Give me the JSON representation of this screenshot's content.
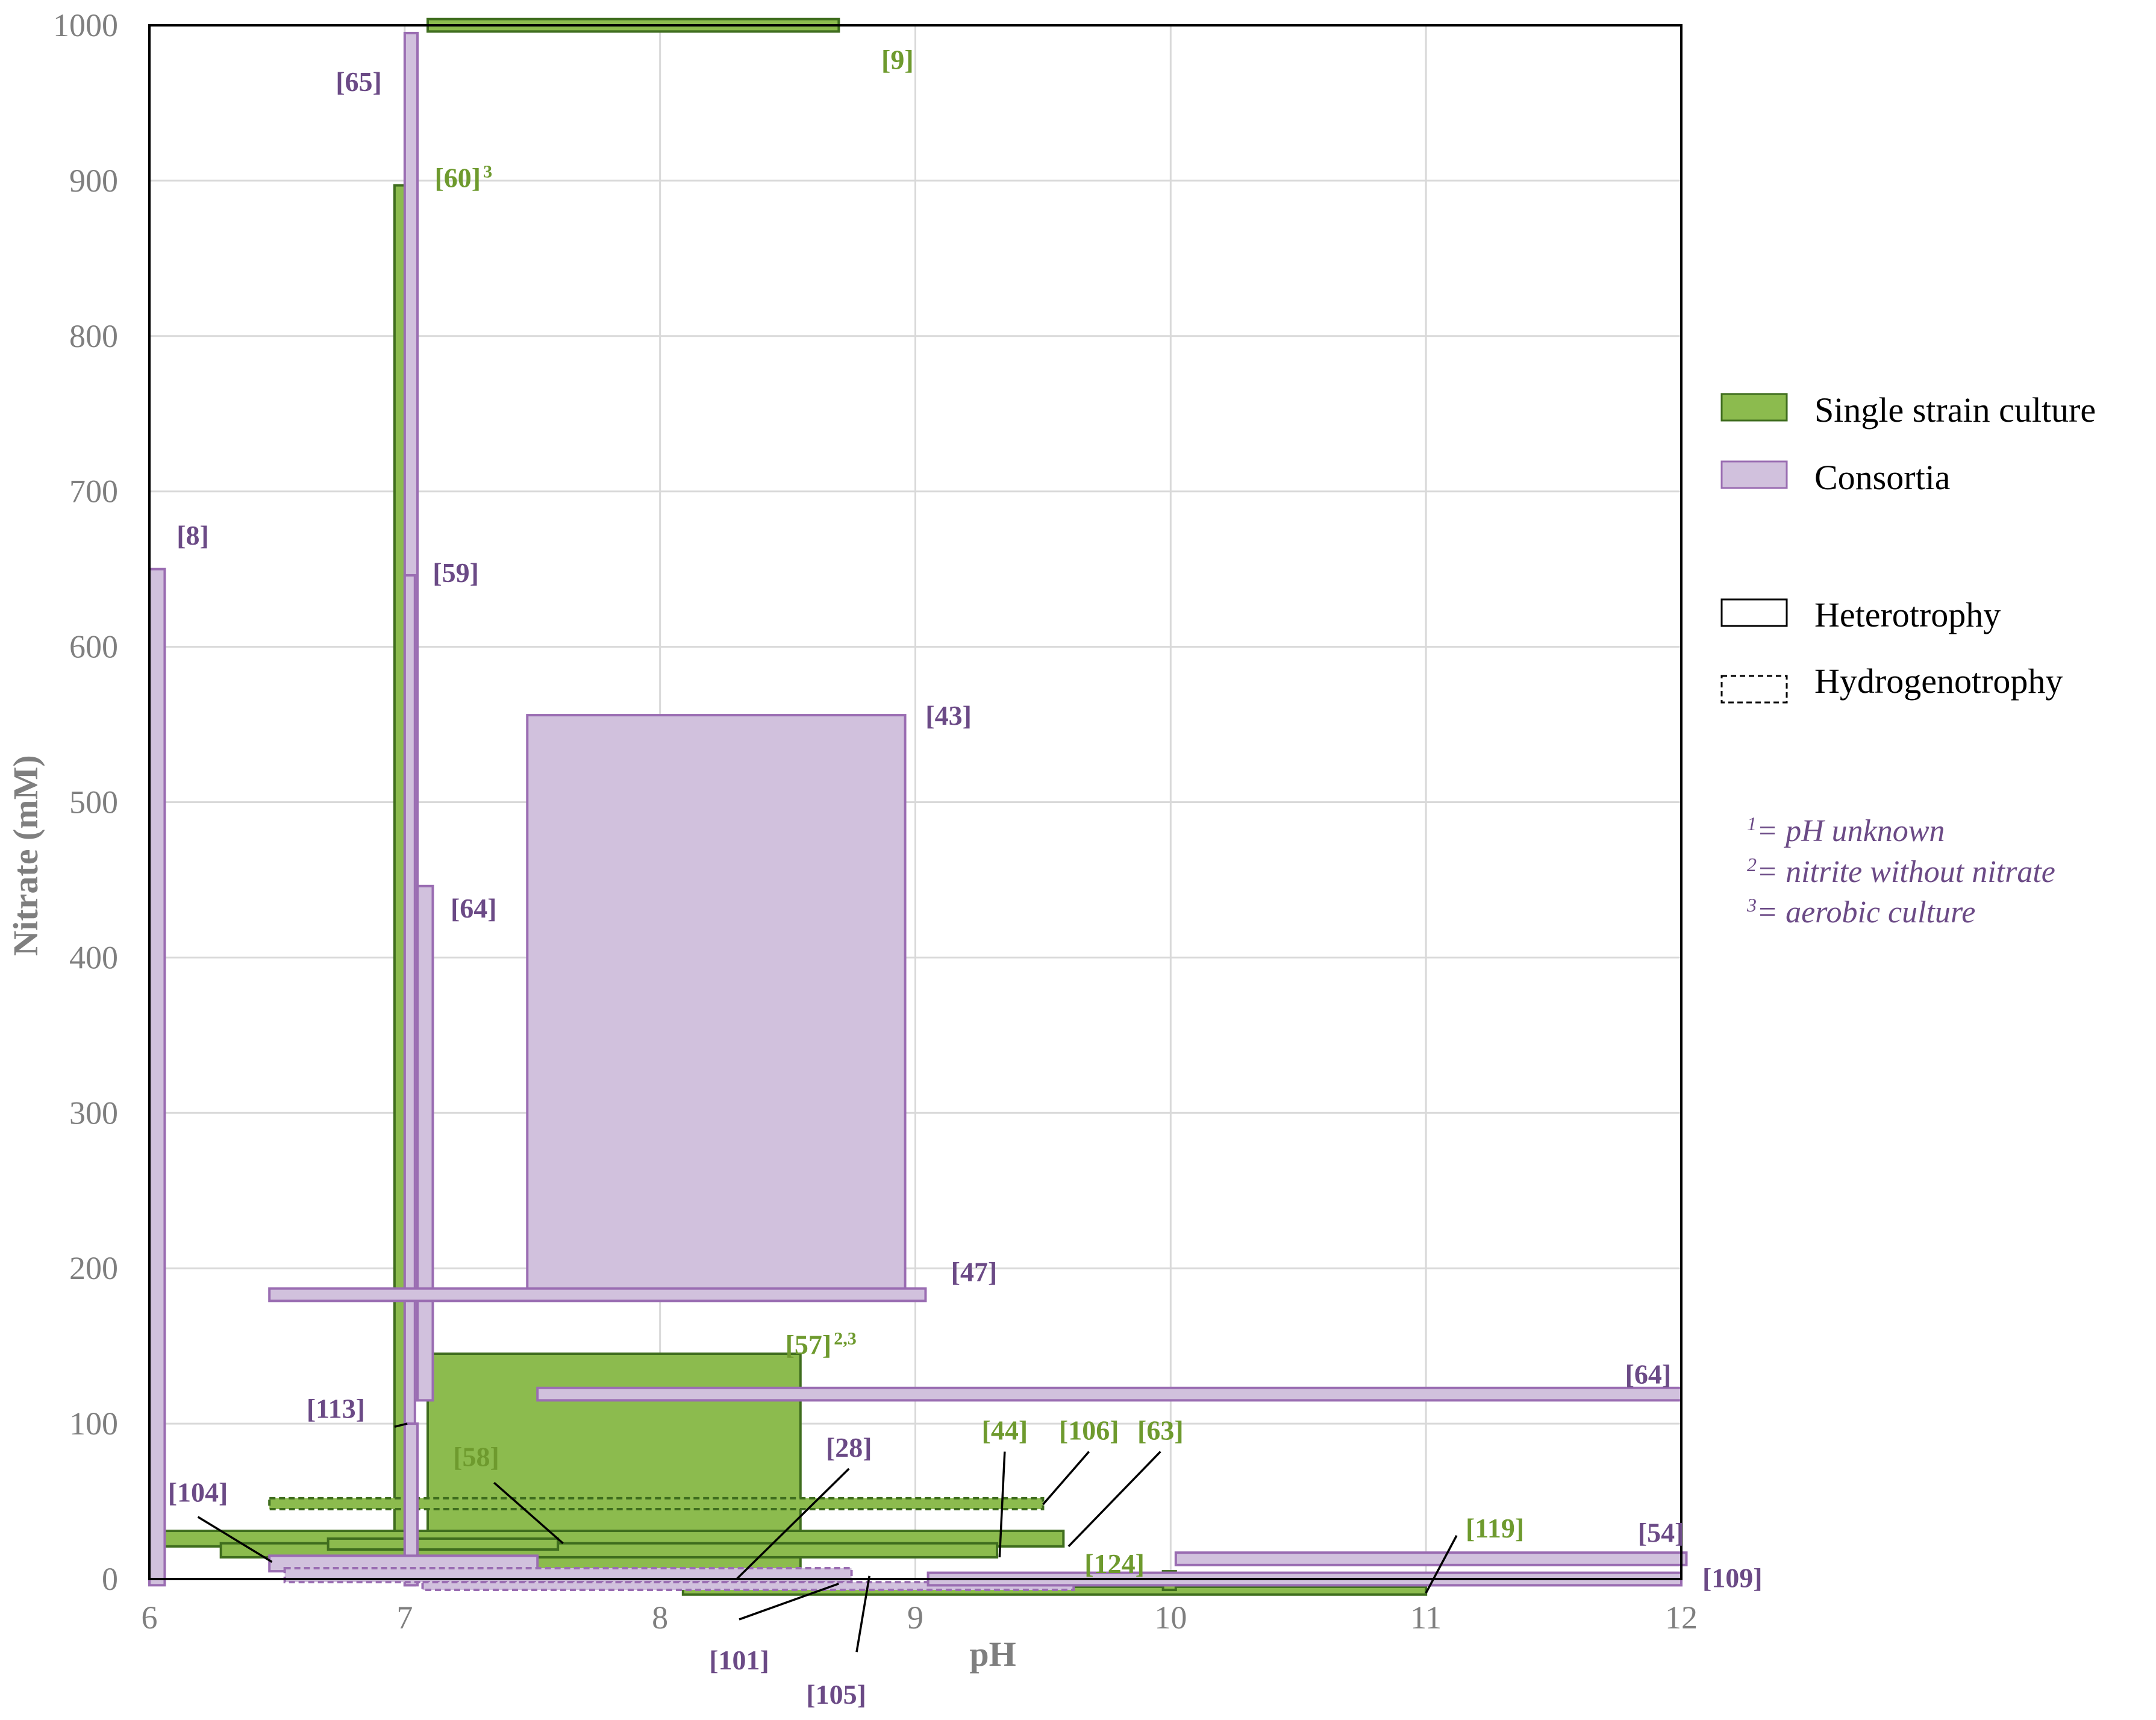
{
  "colors": {
    "single_fill": "#8cbb4e",
    "single_stroke": "#3f6d1e",
    "single_label": "#6e9a2e",
    "consortia_fill": "#d1c1dd",
    "consortia_stroke": "#9a6db2",
    "consortia_label": "#6b4a86",
    "consortia_label_light": "#9a6db2",
    "grid": "#d9d9d9",
    "frame": "#000000",
    "tick_text": "#7f7f7f",
    "note_text": "#6b4a86"
  },
  "chart_data": {
    "type": "range-rectangles",
    "xlabel": "pH",
    "ylabel": "Nitrate (mM)",
    "xlim": [
      6,
      12
    ],
    "ylim": [
      0,
      1000
    ],
    "x_ticks": [
      "6",
      "7",
      "8",
      "9",
      "10",
      "11",
      "12"
    ],
    "y_ticks": [
      "0",
      "100",
      "200",
      "300",
      "400",
      "500",
      "600",
      "700",
      "800",
      "900",
      "1000"
    ],
    "grid": true,
    "legend_position": "right",
    "legend": {
      "single": "Single strain culture",
      "consortia": "Consortia",
      "heterotrophy": "Heterotrophy",
      "hydrogenotrophy": "Hydrogenotrophy"
    },
    "notes": [
      {
        "sup": "1",
        "text": "= pH unknown"
      },
      {
        "sup": "2",
        "text": "= nitrite without nitrate"
      },
      {
        "sup": "3",
        "text": "= aerobic culture"
      }
    ],
    "ranges": [
      {
        "ref": "[9]",
        "group": "single",
        "mode": "heterotrophy",
        "ph": [
          7.09,
          8.7
        ],
        "nitrate": [
          996,
          1004
        ]
      },
      {
        "ref": "[60]",
        "group": "single",
        "mode": "heterotrophy",
        "ph": [
          6.96,
          7.01
        ],
        "nitrate": [
          0,
          897
        ]
      },
      {
        "ref": "[57]",
        "group": "single",
        "mode": "heterotrophy",
        "ph": [
          7.09,
          8.55
        ],
        "nitrate": [
          0,
          145
        ]
      },
      {
        "ref": "[63]",
        "group": "single",
        "mode": "heterotrophy",
        "ph": [
          6.04,
          9.58
        ],
        "nitrate": [
          21,
          31
        ]
      },
      {
        "ref": "[44]",
        "group": "single",
        "mode": "heterotrophy",
        "ph": [
          6.28,
          9.32
        ],
        "nitrate": [
          14,
          23
        ]
      },
      {
        "ref": "[58]",
        "group": "single",
        "mode": "heterotrophy",
        "ph": [
          6.7,
          7.6
        ],
        "nitrate": [
          19,
          26
        ]
      },
      {
        "ref": "[106]",
        "group": "single",
        "mode": "hydrogenotrophy",
        "ph": [
          6.47,
          9.5
        ],
        "nitrate": [
          45,
          52
        ]
      },
      {
        "ref": "[119]",
        "group": "single",
        "mode": "heterotrophy",
        "ph": [
          8.09,
          11.0
        ],
        "nitrate": [
          -10,
          -5
        ]
      },
      {
        "ref": "[124]",
        "group": "single",
        "mode": "heterotrophy",
        "ph": [
          9.97,
          10.02
        ],
        "nitrate": [
          -7,
          5
        ]
      },
      {
        "ref": "[65]",
        "group": "consortia",
        "mode": "heterotrophy",
        "ph": [
          7.0,
          7.05
        ],
        "nitrate": [
          115,
          995
        ]
      },
      {
        "ref": "[59]",
        "group": "consortia",
        "mode": "heterotrophy",
        "ph": [
          7.0,
          7.04
        ],
        "nitrate": [
          -4,
          646
        ]
      },
      {
        "ref": "[8]",
        "group": "consortia",
        "mode": "heterotrophy",
        "ph": [
          6.0,
          6.06
        ],
        "nitrate": [
          -4,
          650
        ]
      },
      {
        "ref": "[43]",
        "group": "consortia",
        "mode": "heterotrophy",
        "ph": [
          7.48,
          8.96
        ],
        "nitrate": [
          186,
          556
        ]
      },
      {
        "ref": "[64]",
        "group": "consortia",
        "mode": "heterotrophy",
        "ph": [
          7.05,
          7.11
        ],
        "nitrate": [
          115,
          446
        ]
      },
      {
        "ref": "[47]",
        "group": "consortia",
        "mode": "heterotrophy",
        "ph": [
          6.47,
          9.04
        ],
        "nitrate": [
          179,
          187
        ]
      },
      {
        "ref": "[64]",
        "group": "consortia",
        "mode": "heterotrophy",
        "ph": [
          7.52,
          12.0
        ],
        "nitrate": [
          115,
          123
        ]
      },
      {
        "ref": "[113]",
        "group": "consortia",
        "mode": "heterotrophy",
        "ph": [
          7.0,
          7.05
        ],
        "nitrate": [
          -4,
          100
        ]
      },
      {
        "ref": "[28]",
        "group": "consortia",
        "mode": "heterotrophy",
        "ph": [
          6.47,
          7.52
        ],
        "nitrate": [
          5,
          15
        ]
      },
      {
        "ref": "[104]",
        "group": "consortia",
        "mode": "hydrogenotrophy",
        "ph": [
          6.53,
          8.75
        ],
        "nitrate": [
          -2,
          7
        ]
      },
      {
        "ref": "[101]",
        "group": "consortia",
        "mode": "hydrogenotrophy",
        "ph": [
          7.07,
          9.62
        ],
        "nitrate": [
          -7,
          -2
        ]
      },
      {
        "ref": "[105]",
        "group": "consortia",
        "mode": "heterotrophy",
        "ph": [
          9.05,
          12.0
        ],
        "nitrate": [
          -4,
          4
        ]
      },
      {
        "ref": "[54]",
        "group": "consortia",
        "mode": "heterotrophy",
        "ph": [
          10.02,
          12.02
        ],
        "nitrate": [
          9,
          17
        ]
      },
      {
        "ref": "[109]",
        "group": "consortia",
        "mode": "heterotrophy",
        "ph": [
          9.05,
          12.0
        ],
        "nitrate": [
          -4,
          4
        ]
      }
    ],
    "labels": [
      {
        "text": "[9]",
        "group": "single",
        "ph": 8.93,
        "nitrate": 978
      },
      {
        "text": "[65]",
        "group": "consortia",
        "ph": 6.82,
        "nitrate": 964
      },
      {
        "text": "[60]",
        "sup": "3",
        "group": "single",
        "ph": 7.23,
        "nitrate": 902
      },
      {
        "text": "[8]",
        "group": "consortia",
        "ph": 6.17,
        "nitrate": 672
      },
      {
        "text": "[59]",
        "group": "consortia",
        "ph": 7.2,
        "nitrate": 648
      },
      {
        "text": "[43]",
        "group": "consortia",
        "ph": 9.13,
        "nitrate": 556
      },
      {
        "text": "[64]",
        "group": "consortia",
        "ph": 7.27,
        "nitrate": 432
      },
      {
        "text": "[47]",
        "group": "consortia",
        "ph": 9.23,
        "nitrate": 198
      },
      {
        "text": "[57]",
        "sup": "2,3",
        "group": "single",
        "ph": 8.63,
        "nitrate": 151
      },
      {
        "text": "[64]",
        "group": "consortia",
        "ph": 11.87,
        "nitrate": 132
      },
      {
        "text": "[113]",
        "group": "consortia",
        "ph": 6.73,
        "nitrate": 110
      },
      {
        "text": "[44]",
        "group": "single",
        "ph": 9.35,
        "nitrate": 96
      },
      {
        "text": "[106]",
        "group": "single",
        "ph": 9.68,
        "nitrate": 96
      },
      {
        "text": "[63]",
        "group": "single",
        "ph": 9.96,
        "nitrate": 96
      },
      {
        "text": "[28]",
        "group": "consortia",
        "ph": 8.74,
        "nitrate": 85
      },
      {
        "text": "[58]",
        "group": "single",
        "ph": 7.28,
        "nitrate": 79
      },
      {
        "text": "[104]",
        "group": "consortia",
        "ph": 6.19,
        "nitrate": 56
      },
      {
        "text": "[119]",
        "group": "single",
        "ph": 11.27,
        "nitrate": 33
      },
      {
        "text": "[54]",
        "group": "consortia",
        "ph": 11.92,
        "nitrate": 30
      },
      {
        "text": "[124]",
        "group": "single",
        "ph": 9.78,
        "nitrate": 10
      },
      {
        "text": "[109]",
        "group": "consortia",
        "ph": 12.2,
        "nitrate": 1
      },
      {
        "text": "[101]",
        "group": "consortia",
        "ph": 8.31,
        "nitrate": -52
      },
      {
        "text": "[105]",
        "group": "consortia",
        "ph": 8.69,
        "nitrate": -74
      }
    ],
    "leaders": [
      {
        "from": [
          6.19,
          40
        ],
        "to": [
          6.48,
          11
        ]
      },
      {
        "from": [
          6.96,
          98
        ],
        "to": [
          7.01,
          100
        ]
      },
      {
        "from": [
          7.35,
          62
        ],
        "to": [
          7.62,
          23
        ]
      },
      {
        "from": [
          8.74,
          71
        ],
        "to": [
          8.3,
          0
        ]
      },
      {
        "from": [
          9.35,
          82
        ],
        "to": [
          9.33,
          14
        ]
      },
      {
        "from": [
          9.68,
          82
        ],
        "to": [
          9.5,
          48
        ]
      },
      {
        "from": [
          9.96,
          82
        ],
        "to": [
          9.6,
          21
        ]
      },
      {
        "from": [
          11.12,
          28
        ],
        "to": [
          11.0,
          -9
        ]
      },
      {
        "from": [
          8.31,
          -26
        ],
        "to": [
          8.7,
          -3
        ]
      },
      {
        "from": [
          8.77,
          -47
        ],
        "to": [
          8.82,
          2
        ]
      }
    ]
  }
}
